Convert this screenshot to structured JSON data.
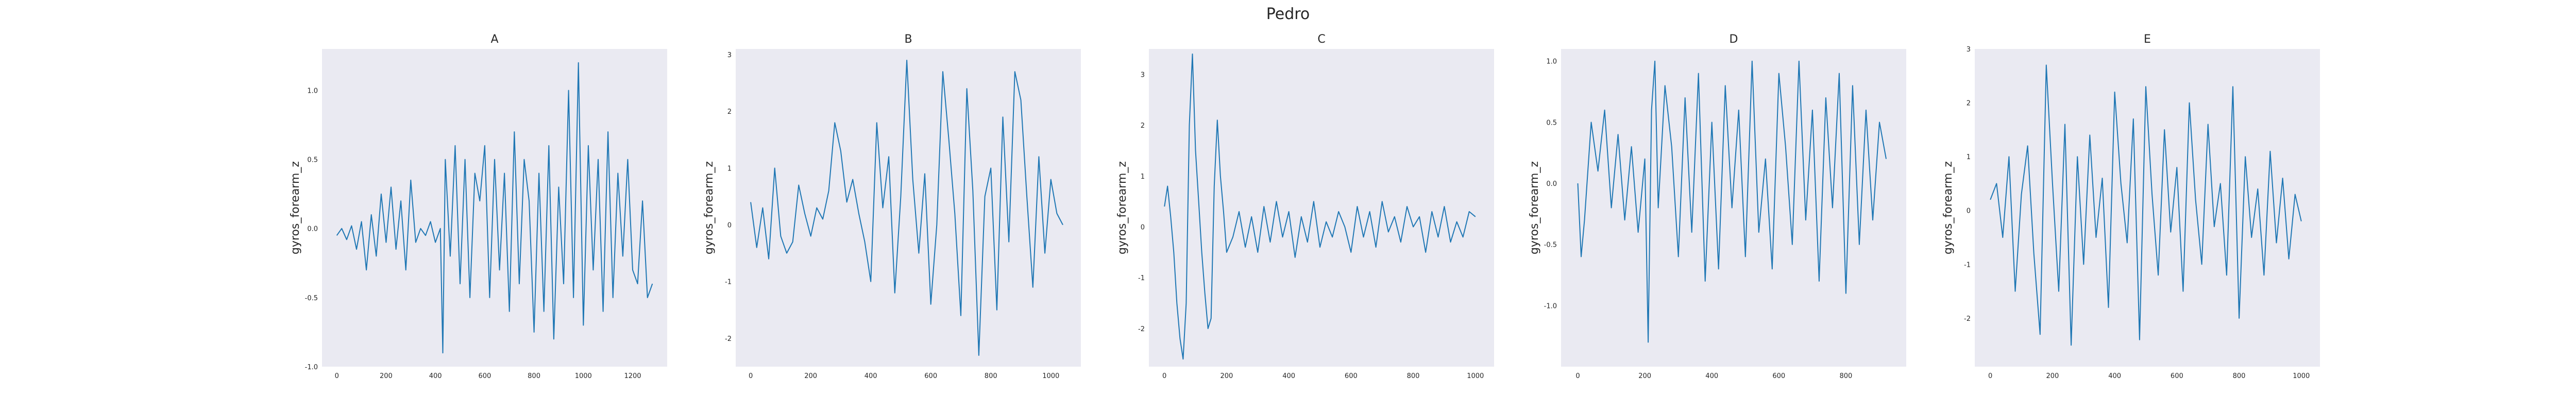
{
  "suptitle": "Pedro",
  "chart_data": [
    {
      "type": "line",
      "title": "A",
      "ylabel": "gyros_forearm_z",
      "xlim": [
        -60,
        1340
      ],
      "ylim": [
        -1.0,
        1.3
      ],
      "xticks": [
        0,
        200,
        400,
        600,
        800,
        1000,
        1200
      ],
      "yticks": [
        -1.0,
        -0.5,
        0.0,
        0.5,
        1.0
      ],
      "ytick_labels": [
        "-1.0",
        "-0.5",
        "0.0",
        "0.5",
        "1.0"
      ],
      "grid": false,
      "series": [
        {
          "color": "#1f77b4",
          "x": [
            0,
            20,
            40,
            60,
            80,
            100,
            120,
            140,
            160,
            180,
            200,
            220,
            240,
            260,
            280,
            300,
            320,
            340,
            360,
            380,
            400,
            420,
            430,
            440,
            460,
            480,
            500,
            520,
            540,
            560,
            580,
            600,
            620,
            640,
            660,
            680,
            700,
            720,
            740,
            760,
            780,
            800,
            820,
            840,
            860,
            880,
            900,
            920,
            940,
            960,
            980,
            1000,
            1020,
            1040,
            1060,
            1080,
            1100,
            1120,
            1140,
            1160,
            1180,
            1200,
            1220,
            1240,
            1260,
            1280
          ],
          "y": [
            -0.05,
            0.0,
            -0.08,
            0.02,
            -0.15,
            0.05,
            -0.3,
            0.1,
            -0.2,
            0.25,
            -0.1,
            0.3,
            -0.15,
            0.2,
            -0.3,
            0.35,
            -0.1,
            0.0,
            -0.05,
            0.05,
            -0.1,
            0.0,
            -0.9,
            0.5,
            -0.2,
            0.6,
            -0.4,
            0.5,
            -0.5,
            0.4,
            0.2,
            0.6,
            -0.5,
            0.5,
            -0.3,
            0.4,
            -0.6,
            0.7,
            -0.4,
            0.5,
            0.2,
            -0.75,
            0.4,
            -0.6,
            0.6,
            -0.8,
            0.3,
            -0.4,
            1.0,
            -0.5,
            1.2,
            -0.7,
            0.6,
            -0.3,
            0.5,
            -0.6,
            0.7,
            -0.5,
            0.4,
            -0.2,
            0.5,
            -0.3,
            -0.4,
            0.2,
            -0.5,
            -0.4
          ]
        }
      ]
    },
    {
      "type": "line",
      "title": "B",
      "ylabel": "gyros_forearm_z",
      "xlim": [
        -50,
        1100
      ],
      "ylim": [
        -2.5,
        3.1
      ],
      "xticks": [
        0,
        200,
        400,
        600,
        800,
        1000
      ],
      "yticks": [
        -2,
        -1,
        0,
        1,
        2,
        3
      ],
      "ytick_labels": [
        "-2",
        "-1",
        "0",
        "1",
        "2",
        "3"
      ],
      "grid": false,
      "series": [
        {
          "color": "#1f77b4",
          "x": [
            0,
            20,
            40,
            60,
            80,
            100,
            120,
            140,
            160,
            180,
            200,
            220,
            240,
            260,
            280,
            300,
            320,
            340,
            360,
            380,
            400,
            420,
            440,
            460,
            480,
            500,
            520,
            540,
            560,
            580,
            600,
            620,
            640,
            660,
            680,
            700,
            720,
            740,
            760,
            780,
            800,
            820,
            840,
            860,
            880,
            900,
            920,
            940,
            960,
            980,
            1000,
            1020,
            1040
          ],
          "y": [
            0.4,
            -0.4,
            0.3,
            -0.6,
            1.0,
            -0.2,
            -0.5,
            -0.3,
            0.7,
            0.2,
            -0.2,
            0.3,
            0.1,
            0.6,
            1.8,
            1.3,
            0.4,
            0.8,
            0.2,
            -0.3,
            -1.0,
            1.8,
            0.3,
            1.2,
            -1.2,
            0.5,
            2.9,
            0.8,
            -0.5,
            0.9,
            -1.4,
            0.0,
            2.7,
            1.5,
            0.2,
            -1.6,
            2.4,
            0.6,
            -2.3,
            0.5,
            1.0,
            -1.5,
            1.9,
            -0.3,
            2.7,
            2.2,
            0.5,
            -1.1,
            1.2,
            -0.5,
            0.8,
            0.2,
            0.0
          ]
        }
      ]
    },
    {
      "type": "line",
      "title": "C",
      "ylabel": "gyros_forearm_z",
      "xlim": [
        -50,
        1060
      ],
      "ylim": [
        -2.75,
        3.5
      ],
      "xticks": [
        0,
        200,
        400,
        600,
        800,
        1000
      ],
      "yticks": [
        -2,
        -1,
        0,
        1,
        2,
        3
      ],
      "ytick_labels": [
        "-2",
        "-1",
        "0",
        "1",
        "2",
        "3"
      ],
      "grid": false,
      "series": [
        {
          "color": "#1f77b4",
          "x": [
            0,
            10,
            20,
            30,
            40,
            50,
            60,
            70,
            80,
            90,
            100,
            110,
            120,
            130,
            140,
            150,
            160,
            170,
            180,
            190,
            200,
            220,
            240,
            260,
            280,
            300,
            320,
            340,
            360,
            380,
            400,
            420,
            440,
            460,
            480,
            500,
            520,
            540,
            560,
            580,
            600,
            620,
            640,
            660,
            680,
            700,
            720,
            740,
            760,
            780,
            800,
            820,
            840,
            860,
            880,
            900,
            920,
            940,
            960,
            980,
            1000
          ],
          "y": [
            0.4,
            0.8,
            0.2,
            -0.5,
            -1.5,
            -2.2,
            -2.6,
            -1.5,
            2.0,
            3.4,
            1.5,
            0.5,
            -0.5,
            -1.3,
            -2.0,
            -1.8,
            0.8,
            2.1,
            1.0,
            0.3,
            -0.5,
            -0.2,
            0.3,
            -0.4,
            0.2,
            -0.5,
            0.4,
            -0.3,
            0.5,
            -0.2,
            0.3,
            -0.6,
            0.2,
            -0.3,
            0.5,
            -0.4,
            0.1,
            -0.2,
            0.3,
            0.0,
            -0.5,
            0.4,
            -0.2,
            0.3,
            -0.4,
            0.5,
            -0.1,
            0.2,
            -0.3,
            0.4,
            0.0,
            0.2,
            -0.5,
            0.3,
            -0.2,
            0.4,
            -0.3,
            0.1,
            -0.2,
            0.3,
            0.2
          ]
        }
      ]
    },
    {
      "type": "line",
      "title": "D",
      "ylabel": "gyros_forearm_z",
      "xlim": [
        -50,
        980
      ],
      "ylim": [
        -1.5,
        1.1
      ],
      "xticks": [
        0,
        200,
        400,
        600,
        800
      ],
      "yticks": [
        -1.0,
        -0.5,
        0.0,
        0.5,
        1.0
      ],
      "ytick_labels": [
        "-1.0",
        "-0.5",
        "0.0",
        "0.5",
        "1.0"
      ],
      "grid": false,
      "series": [
        {
          "color": "#1f77b4",
          "x": [
            0,
            10,
            20,
            40,
            60,
            80,
            100,
            120,
            140,
            160,
            180,
            200,
            210,
            220,
            230,
            240,
            260,
            280,
            300,
            320,
            340,
            360,
            380,
            400,
            420,
            440,
            460,
            480,
            500,
            520,
            540,
            560,
            580,
            600,
            620,
            640,
            660,
            680,
            700,
            720,
            740,
            760,
            780,
            800,
            820,
            840,
            860,
            880,
            900,
            920
          ],
          "y": [
            0.0,
            -0.6,
            -0.3,
            0.5,
            0.1,
            0.6,
            -0.2,
            0.4,
            -0.3,
            0.3,
            -0.4,
            0.2,
            -1.3,
            0.6,
            1.0,
            -0.2,
            0.8,
            0.3,
            -0.6,
            0.7,
            -0.4,
            0.9,
            -0.8,
            0.5,
            -0.7,
            0.8,
            -0.2,
            0.6,
            -0.6,
            1.0,
            -0.4,
            0.2,
            -0.7,
            0.9,
            0.3,
            -0.5,
            1.0,
            -0.3,
            0.6,
            -0.8,
            0.7,
            -0.2,
            0.9,
            -0.9,
            0.8,
            -0.5,
            0.6,
            -0.3,
            0.5,
            0.2
          ]
        }
      ]
    },
    {
      "type": "line",
      "title": "E",
      "ylabel": "gyros_forearm_z",
      "xlim": [
        -50,
        1060
      ],
      "ylim": [
        -2.9,
        3.0
      ],
      "xticks": [
        0,
        200,
        400,
        600,
        800,
        1000
      ],
      "yticks": [
        -2,
        -1,
        0,
        1,
        2,
        3
      ],
      "ytick_labels": [
        "-2",
        "-1",
        "0",
        "1",
        "2",
        "3"
      ],
      "grid": false,
      "series": [
        {
          "color": "#1f77b4",
          "x": [
            0,
            20,
            40,
            60,
            80,
            100,
            120,
            140,
            160,
            180,
            200,
            220,
            240,
            260,
            280,
            300,
            320,
            340,
            360,
            380,
            400,
            420,
            440,
            460,
            480,
            500,
            520,
            540,
            560,
            580,
            600,
            620,
            640,
            660,
            680,
            700,
            720,
            740,
            760,
            780,
            800,
            820,
            840,
            860,
            880,
            900,
            920,
            940,
            960,
            980,
            1000
          ],
          "y": [
            0.2,
            0.5,
            -0.5,
            1.0,
            -1.5,
            0.3,
            1.2,
            -0.8,
            -2.3,
            2.7,
            0.5,
            -1.5,
            1.6,
            -2.5,
            1.0,
            -1.0,
            1.4,
            -0.5,
            0.6,
            -1.8,
            2.2,
            0.5,
            -0.6,
            1.7,
            -2.4,
            2.3,
            0.3,
            -1.2,
            1.5,
            -0.4,
            0.8,
            -1.5,
            2.0,
            0.2,
            -1.0,
            1.6,
            -0.3,
            0.5,
            -1.2,
            2.3,
            -2.0,
            1.0,
            -0.5,
            0.4,
            -1.2,
            1.1,
            -0.6,
            0.6,
            -0.9,
            0.3,
            -0.2
          ]
        }
      ]
    }
  ]
}
